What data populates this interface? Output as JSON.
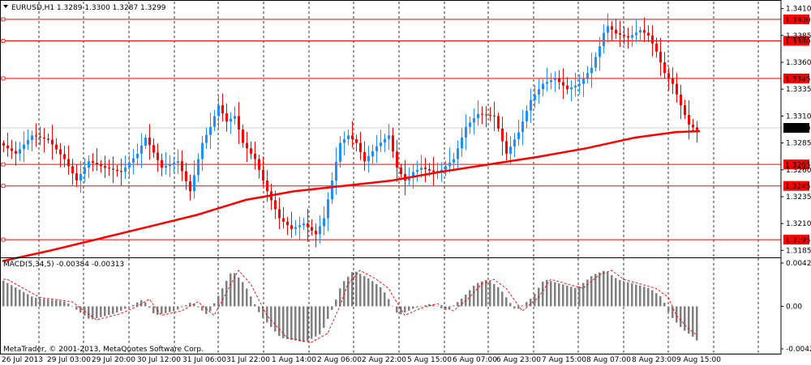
{
  "chart_data": [
    {
      "type": "candlestick",
      "title": "EURUSD,H1  1.3289 1.3300 1.3287 1.3299",
      "symbol": "EURUSD,H1",
      "ohlc_header": "1.3289 1.3300 1.3287 1.3299",
      "ylim": [
        1.318,
        1.3415
      ],
      "y_ticks": [
        "1.3410",
        "1.3385",
        "1.3360",
        "1.3335",
        "1.3310",
        "1.3285",
        "1.3260",
        "1.3235",
        "1.3210",
        "1.3185"
      ],
      "current_price": "1.3299",
      "horizontal_levels": [
        "1.3400",
        "1.3380",
        "1.3345",
        "1.3265",
        "1.3245",
        "1.3195"
      ],
      "moving_average": {
        "color": "#ff0000",
        "x": [
          0,
          60,
          120,
          180,
          240,
          300,
          360,
          420,
          480,
          540,
          600,
          660,
          720,
          780,
          830,
          860
        ],
        "values": [
          1.3175,
          1.3185,
          1.3196,
          1.3207,
          1.3218,
          1.3232,
          1.324,
          1.3245,
          1.325,
          1.3258,
          1.3265,
          1.3272,
          1.328,
          1.329,
          1.3295,
          1.3296
        ]
      },
      "price_path": {
        "x": [
          0,
          20,
          40,
          60,
          80,
          95,
          110,
          130,
          150,
          170,
          180,
          200,
          220,
          235,
          250,
          260,
          270,
          280,
          290,
          300,
          315,
          330,
          345,
          360,
          375,
          390,
          400,
          410,
          420,
          430,
          440,
          450,
          465,
          480,
          490,
          500,
          510,
          520,
          535,
          545,
          560,
          575,
          590,
          610,
          625,
          640,
          655,
          670,
          685,
          700,
          715,
          730,
          740,
          748,
          760,
          775,
          790,
          800,
          810,
          820,
          830,
          840,
          850,
          860
        ],
        "values": [
          1.3285,
          1.3275,
          1.3292,
          1.3288,
          1.327,
          1.325,
          1.3268,
          1.3262,
          1.3258,
          1.3275,
          1.329,
          1.3262,
          1.3268,
          1.324,
          1.3285,
          1.33,
          1.332,
          1.3305,
          1.331,
          1.3285,
          1.327,
          1.324,
          1.3215,
          1.3205,
          1.321,
          1.32,
          1.3215,
          1.325,
          1.3285,
          1.3292,
          1.3285,
          1.3268,
          1.3282,
          1.3292,
          1.3262,
          1.325,
          1.3258,
          1.3262,
          1.3258,
          1.326,
          1.327,
          1.33,
          1.3312,
          1.331,
          1.3275,
          1.3295,
          1.3325,
          1.334,
          1.3345,
          1.3335,
          1.334,
          1.3355,
          1.3375,
          1.3395,
          1.3387,
          1.3383,
          1.339,
          1.3385,
          1.337,
          1.335,
          1.334,
          1.332,
          1.3302,
          1.3297
        ]
      },
      "x_tick_labels": [
        "26 Jul 2013",
        "29 Jul 03:00",
        "29 Jul 20:00",
        "30 Jul 12:00",
        "31 Jul 06:00",
        "31 Jul 22:00",
        "1 Aug 14:00",
        "2 Aug 06:00",
        "2 Aug 22:00",
        "5 Aug 15:00",
        "6 Aug 07:00",
        "6 Aug 23:00",
        "7 Aug 15:00",
        "8 Aug 07:00",
        "8 Aug 23:00",
        "9 Aug 15:00"
      ],
      "grid": true,
      "colors": {
        "up": "#1e90ff",
        "down": "#ff0000",
        "level": "#ff0000",
        "background": "#ffffff"
      }
    },
    {
      "type": "bar",
      "title": "MACD(5,34,5) -0.00384 -0.00313",
      "ylim": [
        -0.00427,
        0.00427
      ],
      "y_ticks": [
        "0.00427",
        "0.00",
        "-0.00427"
      ],
      "x": [
        0,
        40,
        80,
        110,
        140,
        160,
        175,
        190,
        215,
        235,
        255,
        270,
        285,
        300,
        320,
        345,
        375,
        395,
        410,
        420,
        435,
        455,
        470,
        490,
        510,
        530,
        550,
        570,
        585,
        600,
        615,
        635,
        655,
        670,
        690,
        710,
        730,
        745,
        760,
        780,
        800,
        815,
        825,
        840,
        855,
        860
      ],
      "values": [
        0.003,
        0.001,
        0.0005,
        -0.0015,
        -0.0008,
        0.0,
        0.0008,
        -0.001,
        -0.0005,
        0.0005,
        -0.001,
        0.0015,
        0.004,
        0.0025,
        -0.001,
        -0.0035,
        -0.004,
        -0.003,
        0.0,
        0.0025,
        0.004,
        0.003,
        0.002,
        -0.001,
        -0.0002,
        0.0003,
        -0.0005,
        0.001,
        0.0025,
        0.003,
        0.002,
        -0.0005,
        0.001,
        0.003,
        0.0025,
        0.002,
        0.0035,
        0.004,
        0.003,
        0.0025,
        0.002,
        0.001,
        -0.001,
        -0.0025,
        -0.0035,
        -0.004
      ],
      "signal_color": "#ff0000",
      "bar_color": "#808080"
    }
  ],
  "footer": "MetaTrader, © 2001-2013, MetaQuotes Software Corp."
}
